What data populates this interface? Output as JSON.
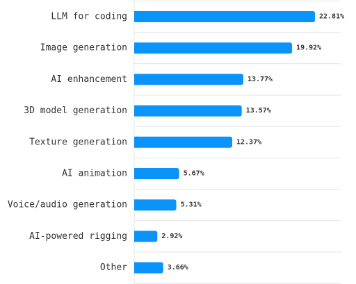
{
  "chart_data": {
    "type": "bar",
    "orientation": "horizontal",
    "categories": [
      "LLM for coding",
      "Image generation",
      "AI enhancement",
      "3D model generation",
      "Texture generation",
      "AI animation",
      "Voice/audio generation",
      "AI-powered rigging",
      "Other"
    ],
    "values": [
      22.81,
      19.92,
      13.77,
      13.57,
      12.37,
      5.67,
      5.31,
      2.92,
      3.66
    ],
    "value_labels": [
      "22.81%",
      "19.92%",
      "13.77%",
      "13.57%",
      "12.37%",
      "5.67%",
      "5.31%",
      "2.92%",
      "3.66%"
    ],
    "xlim": [
      0,
      25
    ],
    "grid": true,
    "legend": "none",
    "bar_color": "#0a93fa",
    "grid_color": "#e4e4e4",
    "text_color": "#333333"
  }
}
